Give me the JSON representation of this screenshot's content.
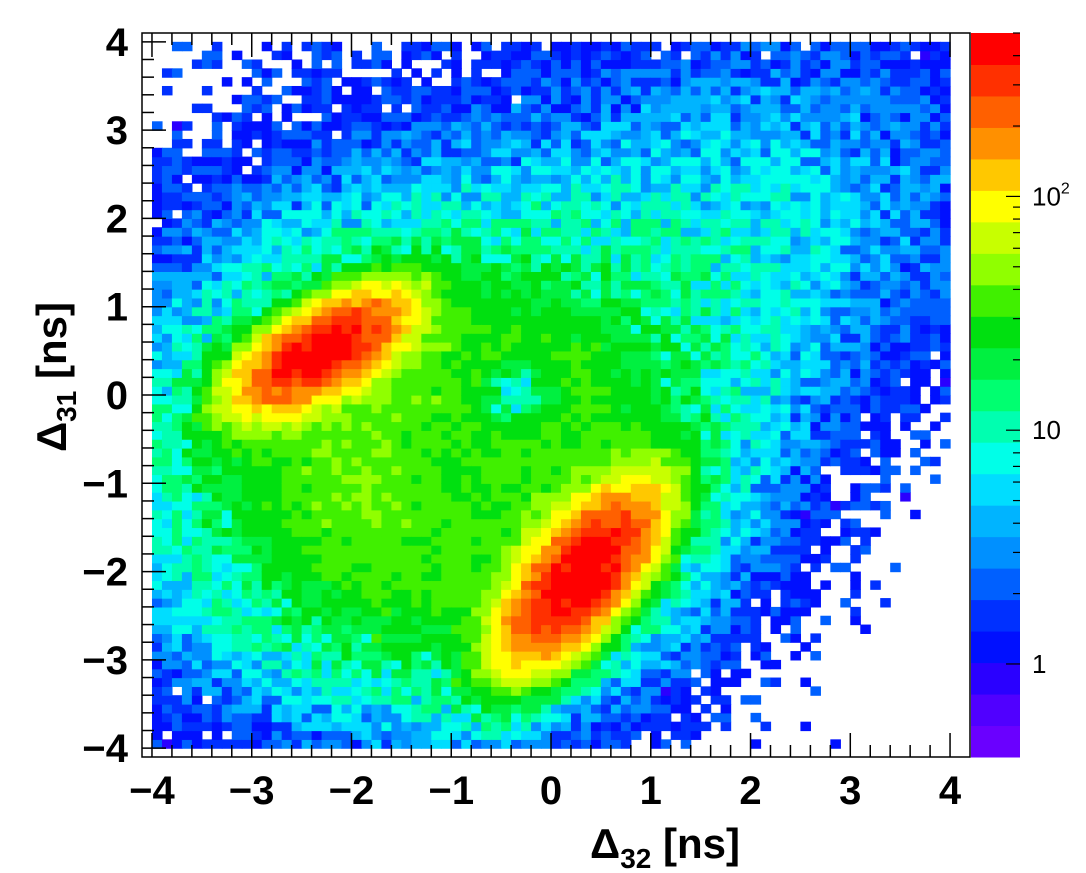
{
  "chart_data": {
    "type": "heatmap",
    "title": "",
    "xlabel": {
      "main": "Δ",
      "sub": "32",
      "unit": " [ns]"
    },
    "ylabel": {
      "main": "Δ",
      "sub": "31",
      "unit": " [ns]"
    },
    "xlim": [
      -4.1,
      4.2
    ],
    "ylim": [
      -4.1,
      4.1
    ],
    "x_ticks": [
      -4,
      -3,
      -2,
      -1,
      0,
      1,
      2,
      3,
      4
    ],
    "x_tick_labels": [
      "−4",
      "−3",
      "−2",
      "−1",
      "0",
      "1",
      "2",
      "3",
      "4"
    ],
    "y_ticks": [
      -4,
      -3,
      -2,
      -1,
      0,
      1,
      2,
      3,
      4
    ],
    "y_tick_labels": [
      "−4",
      "−3",
      "−2",
      "−1",
      "0",
      "1",
      "2",
      "3",
      "4"
    ],
    "bin_width": 0.1,
    "z_scale": "log",
    "z_range": [
      0.4,
      500
    ],
    "colorbar_labels": [
      {
        "value": 1,
        "base": "1",
        "sup": ""
      },
      {
        "value": 10,
        "base": "10",
        "sup": ""
      },
      {
        "value": 100,
        "base": "10",
        "sup": "2"
      }
    ],
    "grid": false,
    "clusters": [
      {
        "x": -2.3,
        "y": 0.5,
        "peak_counts": 450,
        "sigma_major": 0.55,
        "sigma_minor": 0.25,
        "orientation_deg": 35
      },
      {
        "x": 0.3,
        "y": -2.05,
        "peak_counts": 500,
        "sigma_major": 0.65,
        "sigma_minor": 0.28,
        "orientation_deg": 55
      }
    ],
    "background": {
      "center_x": -1.0,
      "center_y": -0.8,
      "level_counts": 25,
      "ring_radius": 1.9,
      "ring_width": 1.0,
      "diagonal_band_counts": 8
    }
  },
  "colors": {
    "palette": [
      "#6a00ff",
      "#5000ff",
      "#2a00ff",
      "#0010ff",
      "#0030ff",
      "#0060ff",
      "#0090ff",
      "#00b4ff",
      "#00ddff",
      "#00ffe8",
      "#00ffb0",
      "#00ff70",
      "#00f040",
      "#00e010",
      "#40f000",
      "#90ff00",
      "#c8ff00",
      "#ffff00",
      "#ffc800",
      "#ff9000",
      "#ff6000",
      "#ff3000",
      "#ff0000"
    ]
  }
}
